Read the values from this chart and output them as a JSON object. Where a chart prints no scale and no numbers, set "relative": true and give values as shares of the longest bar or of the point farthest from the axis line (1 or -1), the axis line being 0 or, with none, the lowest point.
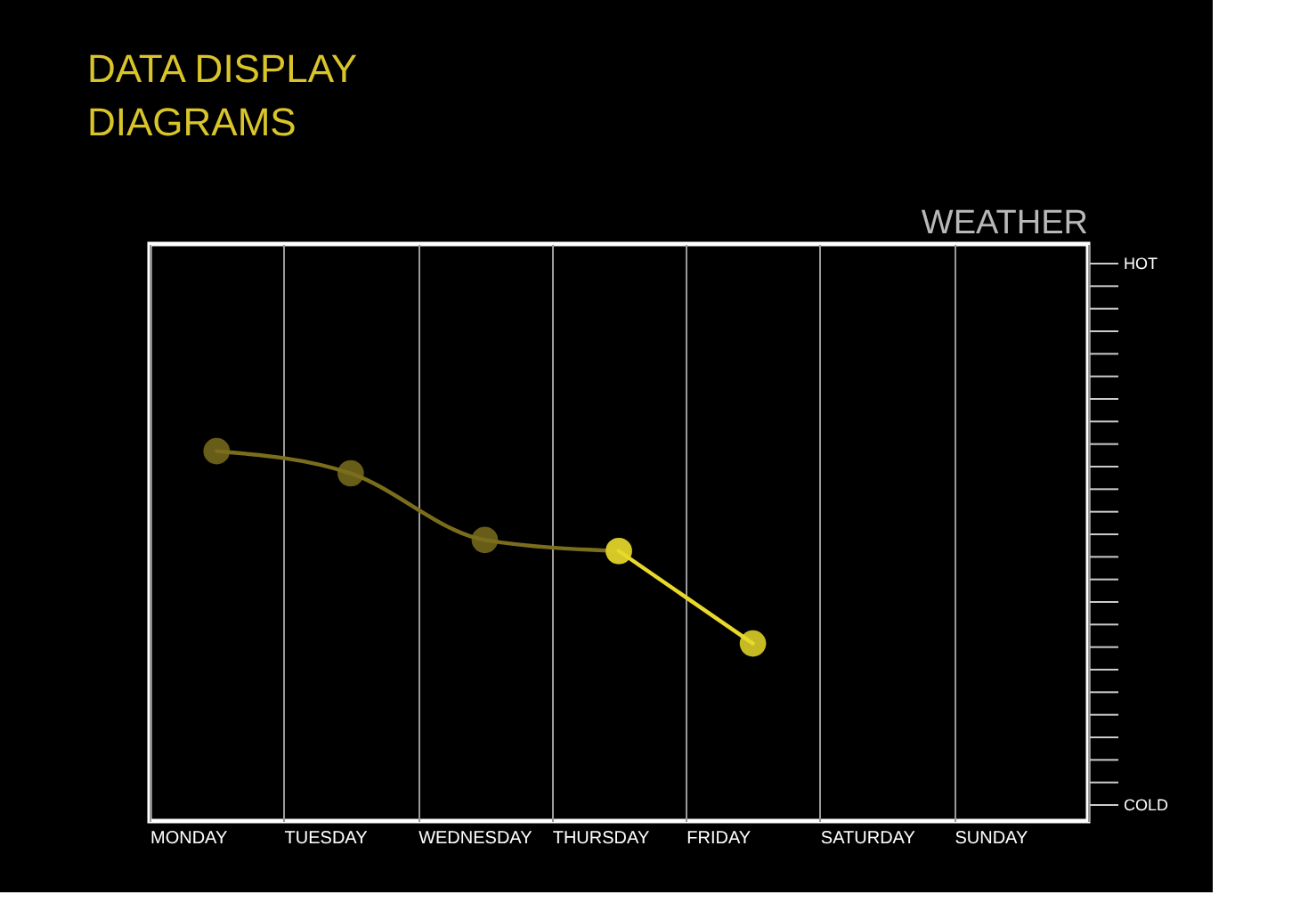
{
  "chart_data": {
    "type": "line",
    "title": "DATA DISPLAY DIAGRAMS",
    "subtitle": "WEATHER",
    "relative": true,
    "categories": [
      "MONDAY",
      "TUESDAY",
      "WEDNESDAY",
      "THURSDAY",
      "FRIDAY",
      "SATURDAY",
      "SUNDAY"
    ],
    "annotations": [
      "HOT",
      "COLD"
    ],
    "grid": "x",
    "line_style": "solid",
    "marker": "circle",
    "series": [
      {
        "color": "#7a6d1c",
        "values": [
          1.0,
          0.94,
          0.76,
          0.73,
          null,
          null,
          null
        ]
      },
      {
        "color": "#e8d92a",
        "values": [
          null,
          null,
          null,
          0.73,
          0.48,
          null,
          null
        ]
      }
    ]
  }
}
